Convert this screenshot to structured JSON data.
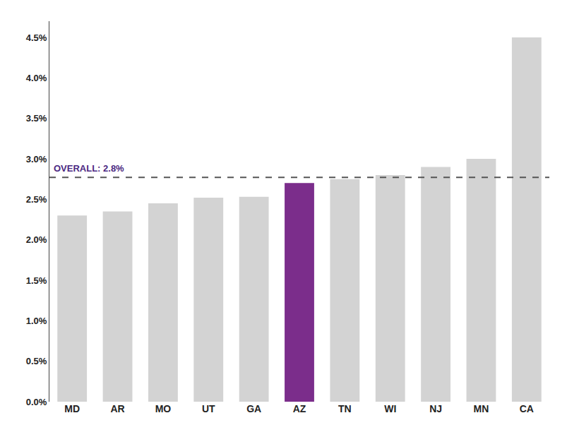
{
  "chart_data": {
    "type": "bar",
    "categories": [
      "MD",
      "AR",
      "MO",
      "UT",
      "GA",
      "AZ",
      "TN",
      "WI",
      "NJ",
      "MN",
      "CA"
    ],
    "values": [
      0.023,
      0.0235,
      0.0245,
      0.0252,
      0.0253,
      0.027,
      0.0275,
      0.028,
      0.029,
      0.03,
      0.045
    ],
    "colors": [
      "#d3d3d3",
      "#d3d3d3",
      "#d3d3d3",
      "#d3d3d3",
      "#d3d3d3",
      "#7b2d8b",
      "#d3d3d3",
      "#d3d3d3",
      "#d3d3d3",
      "#d3d3d3",
      "#d3d3d3"
    ],
    "reference_line": {
      "value": 0.0277,
      "label": "OVERALL: 2.8%",
      "color": "#555555",
      "label_color": "#4b2882",
      "line_style": "dashed"
    },
    "ylim": [
      0,
      0.047
    ],
    "yticks": [
      {
        "value": 0.0,
        "label": "0.0%"
      },
      {
        "value": 0.005,
        "label": "0.5%"
      },
      {
        "value": 0.01,
        "label": "1.0%"
      },
      {
        "value": 0.015,
        "label": "1.5%"
      },
      {
        "value": 0.02,
        "label": "2.0%"
      },
      {
        "value": 0.025,
        "label": "2.5%"
      },
      {
        "value": 0.03,
        "label": "3.0%"
      },
      {
        "value": 0.035,
        "label": "3.5%"
      },
      {
        "value": 0.04,
        "label": "4.0%"
      },
      {
        "value": 0.045,
        "label": "4.5%"
      }
    ],
    "grid": false
  }
}
